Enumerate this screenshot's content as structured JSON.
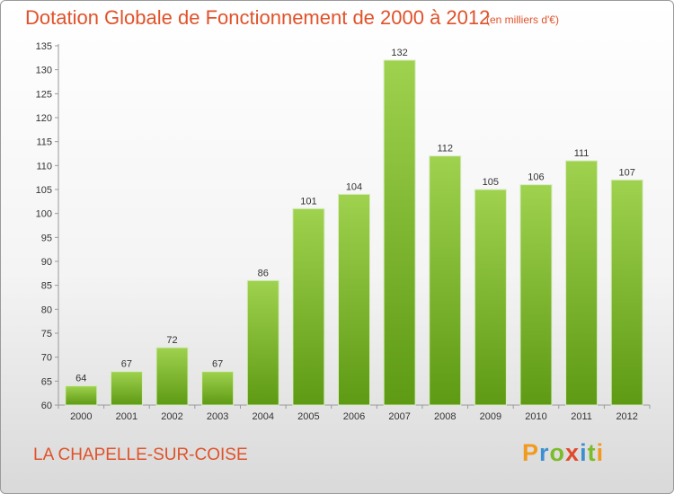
{
  "chart_data": {
    "type": "bar",
    "title": "Dotation Globale de Fonctionnement de 2000 à 2012",
    "subtitle": "(en milliers d'€)",
    "categories": [
      "2000",
      "2001",
      "2002",
      "2003",
      "2004",
      "2005",
      "2006",
      "2007",
      "2008",
      "2009",
      "2010",
      "2011",
      "2012"
    ],
    "values": [
      64,
      67,
      72,
      67,
      86,
      101,
      104,
      132,
      112,
      105,
      106,
      111,
      107
    ],
    "ylim": [
      60,
      135
    ],
    "yticks": [
      60,
      65,
      70,
      75,
      80,
      85,
      90,
      95,
      100,
      105,
      110,
      115,
      120,
      125,
      130,
      135
    ],
    "xlabel": "",
    "ylabel": "",
    "grid": false,
    "colors": {
      "bar_light": "#9fd24e",
      "bar_dark": "#5e9a14",
      "title": "#e0522a"
    }
  },
  "footer": {
    "commune": "LA CHAPELLE-SUR-COISE",
    "logo_letters": [
      {
        "char": "P",
        "color": "#f29a1e"
      },
      {
        "char": "r",
        "color": "#3d8fd1"
      },
      {
        "char": "o",
        "color": "#7cbb2b"
      },
      {
        "char": "x",
        "color": "#e04b2c"
      },
      {
        "char": "i",
        "color": "#3d8fd1"
      },
      {
        "char": "t",
        "color": "#7cbb2b"
      },
      {
        "char": "i",
        "color": "#f29a1e"
      }
    ]
  }
}
